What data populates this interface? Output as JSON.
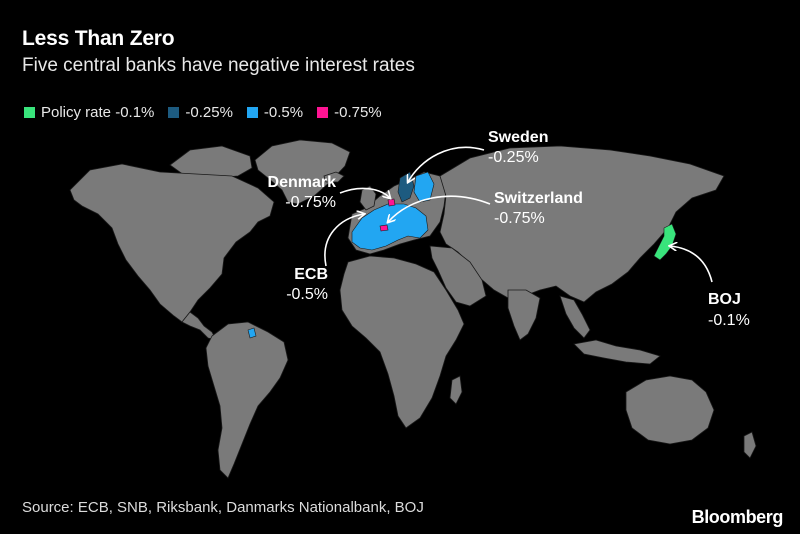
{
  "header": {
    "title": "Less Than Zero",
    "subtitle": "Five central banks have negative interest rates"
  },
  "legend": {
    "items": [
      {
        "label": "Policy rate -0.1%",
        "color": "#39e47c"
      },
      {
        "label": "-0.25%",
        "color": "#1d5b80"
      },
      {
        "label": "-0.5%",
        "color": "#22a6f2"
      },
      {
        "label": "-0.75%",
        "color": "#ff1493"
      }
    ]
  },
  "annotations": {
    "sweden": {
      "name": "Sweden",
      "rate": "-0.25%"
    },
    "denmark": {
      "name": "Denmark",
      "rate": "-0.75%"
    },
    "switzerland": {
      "name": "Switzerland",
      "rate": "-0.75%"
    },
    "ecb": {
      "name": "ECB",
      "rate": "-0.5%"
    },
    "boj": {
      "name": "BOJ",
      "rate": "-0.1%"
    }
  },
  "colors": {
    "land": "#7a7a7a",
    "borders": "#1a1a1a",
    "background": "#000000"
  },
  "footer": {
    "source": "Source: ECB, SNB, Riksbank, Danmarks Nationalbank, BOJ",
    "logo": "Bloomberg"
  }
}
